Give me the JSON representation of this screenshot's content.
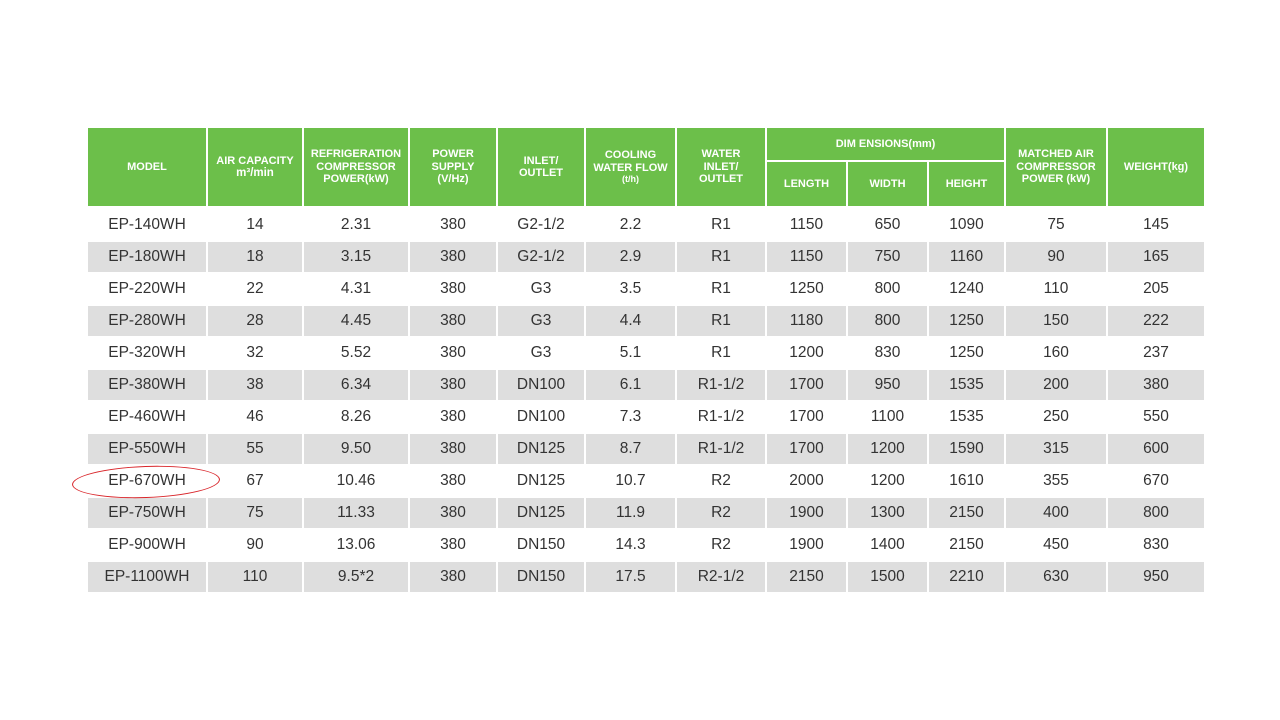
{
  "colors": {
    "header_bg": "#6cbf4a",
    "stripe_bg": "#dedede",
    "highlight": "#d9262b"
  },
  "table": {
    "header": {
      "model": "MODEL",
      "air_capacity": [
        "AIR CAPACITY",
        "m³/min"
      ],
      "compressor_power": [
        "REFRIGERATION",
        "COMPRESSOR",
        "POWER(kW)"
      ],
      "power_supply": [
        "POWER",
        "SUPPLY",
        "(V/Hz)"
      ],
      "inlet_outlet": [
        "INLET/",
        "OUTLET"
      ],
      "cooling_water_flow": [
        "COOLING",
        "WATER FLOW",
        "(t/h)"
      ],
      "water_inlet_outlet": [
        "WATER",
        "INLET/",
        "OUTLET"
      ],
      "dimensions": "DIM ENSIONS(mm)",
      "length": "LENGTH",
      "width": "WIDTH",
      "height": "HEIGHT",
      "matched_air_compressor": [
        "MATCHED AIR",
        "COMPRESSOR",
        "POWER (kW)"
      ],
      "weight": "WEIGHT(kg)"
    },
    "rows": [
      [
        "EP-140WH",
        "14",
        "2.31",
        "380",
        "G2-1/2",
        "2.2",
        "R1",
        "1150",
        "650",
        "1090",
        "75",
        "145"
      ],
      [
        "EP-180WH",
        "18",
        "3.15",
        "380",
        "G2-1/2",
        "2.9",
        "R1",
        "1150",
        "750",
        "1160",
        "90",
        "165"
      ],
      [
        "EP-220WH",
        "22",
        "4.31",
        "380",
        "G3",
        "3.5",
        "R1",
        "1250",
        "800",
        "1240",
        "110",
        "205"
      ],
      [
        "EP-280WH",
        "28",
        "4.45",
        "380",
        "G3",
        "4.4",
        "R1",
        "1180",
        "800",
        "1250",
        "150",
        "222"
      ],
      [
        "EP-320WH",
        "32",
        "5.52",
        "380",
        "G3",
        "5.1",
        "R1",
        "1200",
        "830",
        "1250",
        "160",
        "237"
      ],
      [
        "EP-380WH",
        "38",
        "6.34",
        "380",
        "DN100",
        "6.1",
        "R1-1/2",
        "1700",
        "950",
        "1535",
        "200",
        "380"
      ],
      [
        "EP-460WH",
        "46",
        "8.26",
        "380",
        "DN100",
        "7.3",
        "R1-1/2",
        "1700",
        "1100",
        "1535",
        "250",
        "550"
      ],
      [
        "EP-550WH",
        "55",
        "9.50",
        "380",
        "DN125",
        "8.7",
        "R1-1/2",
        "1700",
        "1200",
        "1590",
        "315",
        "600"
      ],
      [
        "EP-670WH",
        "67",
        "10.46",
        "380",
        "DN125",
        "10.7",
        "R2",
        "2000",
        "1200",
        "1610",
        "355",
        "670"
      ],
      [
        "EP-750WH",
        "75",
        "11.33",
        "380",
        "DN125",
        "11.9",
        "R2",
        "1900",
        "1300",
        "2150",
        "400",
        "800"
      ],
      [
        "EP-900WH",
        "90",
        "13.06",
        "380",
        "DN150",
        "14.3",
        "R2",
        "1900",
        "1400",
        "2150",
        "450",
        "830"
      ],
      [
        "EP-1100WH",
        "110",
        "9.5*2",
        "380",
        "DN150",
        "17.5",
        "R2-1/2",
        "2150",
        "1500",
        "2210",
        "630",
        "950"
      ]
    ]
  }
}
